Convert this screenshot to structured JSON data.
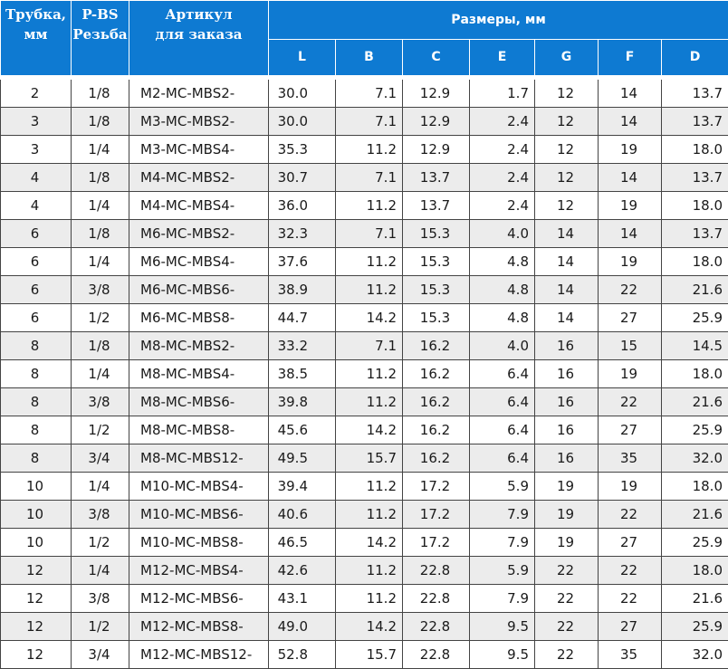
{
  "header": {
    "tube_label": "Трубка, мм",
    "thread_label_line1": "P-BS",
    "thread_label_line2": "Резьба",
    "article_label_line1": "Артикул",
    "article_label_line2": "для заказа",
    "dimensions_label": "Размеры, мм",
    "dims": [
      "L",
      "B",
      "C",
      "E",
      "G",
      "F",
      "D"
    ]
  },
  "rows": [
    [
      "2",
      "1/8",
      "M2-MC-MBS2-",
      "30.0",
      "7.1",
      "12.9",
      "1.7",
      "12",
      "14",
      "13.7"
    ],
    [
      "3",
      "1/8",
      "M3-MC-MBS2-",
      "30.0",
      "7.1",
      "12.9",
      "2.4",
      "12",
      "14",
      "13.7"
    ],
    [
      "3",
      "1/4",
      "M3-MC-MBS4-",
      "35.3",
      "11.2",
      "12.9",
      "2.4",
      "12",
      "19",
      "18.0"
    ],
    [
      "4",
      "1/8",
      "M4-MC-MBS2-",
      "30.7",
      "7.1",
      "13.7",
      "2.4",
      "12",
      "14",
      "13.7"
    ],
    [
      "4",
      "1/4",
      "M4-MC-MBS4-",
      "36.0",
      "11.2",
      "13.7",
      "2.4",
      "12",
      "19",
      "18.0"
    ],
    [
      "6",
      "1/8",
      "M6-MC-MBS2-",
      "32.3",
      "7.1",
      "15.3",
      "4.0",
      "14",
      "14",
      "13.7"
    ],
    [
      "6",
      "1/4",
      "M6-MC-MBS4-",
      "37.6",
      "11.2",
      "15.3",
      "4.8",
      "14",
      "19",
      "18.0"
    ],
    [
      "6",
      "3/8",
      "M6-MC-MBS6-",
      "38.9",
      "11.2",
      "15.3",
      "4.8",
      "14",
      "22",
      "21.6"
    ],
    [
      "6",
      "1/2",
      "M6-MC-MBS8-",
      "44.7",
      "14.2",
      "15.3",
      "4.8",
      "14",
      "27",
      "25.9"
    ],
    [
      "8",
      "1/8",
      "M8-MC-MBS2-",
      "33.2",
      "7.1",
      "16.2",
      "4.0",
      "16",
      "15",
      "14.5"
    ],
    [
      "8",
      "1/4",
      "M8-MC-MBS4-",
      "38.5",
      "11.2",
      "16.2",
      "6.4",
      "16",
      "19",
      "18.0"
    ],
    [
      "8",
      "3/8",
      "M8-MC-MBS6-",
      "39.8",
      "11.2",
      "16.2",
      "6.4",
      "16",
      "22",
      "21.6"
    ],
    [
      "8",
      "1/2",
      "M8-MC-MBS8-",
      "45.6",
      "14.2",
      "16.2",
      "6.4",
      "16",
      "27",
      "25.9"
    ],
    [
      "8",
      "3/4",
      "M8-MC-MBS12-",
      "49.5",
      "15.7",
      "16.2",
      "6.4",
      "16",
      "35",
      "32.0"
    ],
    [
      "10",
      "1/4",
      "M10-MC-MBS4-",
      "39.4",
      "11.2",
      "17.2",
      "5.9",
      "19",
      "19",
      "18.0"
    ],
    [
      "10",
      "3/8",
      "M10-MC-MBS6-",
      "40.6",
      "11.2",
      "17.2",
      "7.9",
      "19",
      "22",
      "21.6"
    ],
    [
      "10",
      "1/2",
      "M10-MC-MBS8-",
      "46.5",
      "14.2",
      "17.2",
      "7.9",
      "19",
      "27",
      "25.9"
    ],
    [
      "12",
      "1/4",
      "M12-MC-MBS4-",
      "42.6",
      "11.2",
      "22.8",
      "5.9",
      "22",
      "22",
      "18.0"
    ],
    [
      "12",
      "3/8",
      "M12-MC-MBS6-",
      "43.1",
      "11.2",
      "22.8",
      "7.9",
      "22",
      "22",
      "21.6"
    ],
    [
      "12",
      "1/2",
      "M12-MC-MBS8-",
      "49.0",
      "14.2",
      "22.8",
      "9.5",
      "22",
      "27",
      "25.9"
    ],
    [
      "12",
      "3/4",
      "M12-MC-MBS12-",
      "52.8",
      "15.7",
      "22.8",
      "9.5",
      "22",
      "35",
      "32.0"
    ]
  ]
}
